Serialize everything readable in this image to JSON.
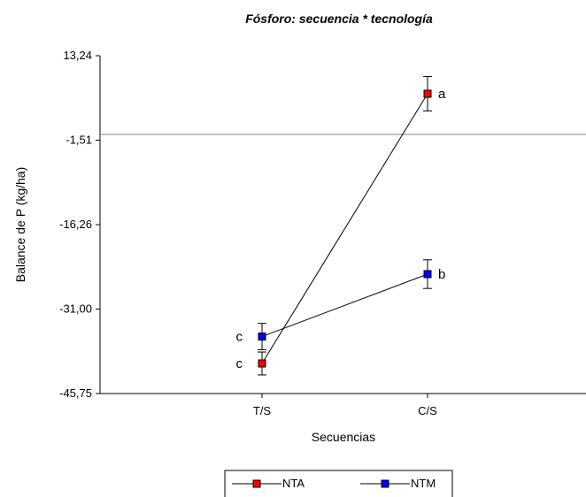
{
  "chart_data": {
    "type": "line",
    "title": "Fósforo: secuencia * tecnología",
    "xlabel": "Secuencias",
    "ylabel": "Balance de P (kg/ha)",
    "categories": [
      "T/S",
      "C/S"
    ],
    "y_ticks": [
      13.24,
      -1.51,
      -16.26,
      -31.0,
      -45.75
    ],
    "y_tick_labels": [
      "13,24",
      "-1,51",
      "-16,26",
      "-31,00",
      "-45,75"
    ],
    "ylim": [
      -45.75,
      13.24
    ],
    "reference_line": -0.5,
    "grid": false,
    "legend_position": "bottom",
    "series": [
      {
        "name": "NTA",
        "color": "#ff0000",
        "values": [
          -40.5,
          6.6
        ],
        "error": [
          2.0,
          3.0
        ],
        "labels": [
          "c",
          "a"
        ]
      },
      {
        "name": "NTM",
        "color": "#0000ff",
        "values": [
          -35.8,
          -24.9
        ],
        "error": [
          2.3,
          2.5
        ],
        "labels": [
          "c",
          "b"
        ]
      }
    ]
  }
}
